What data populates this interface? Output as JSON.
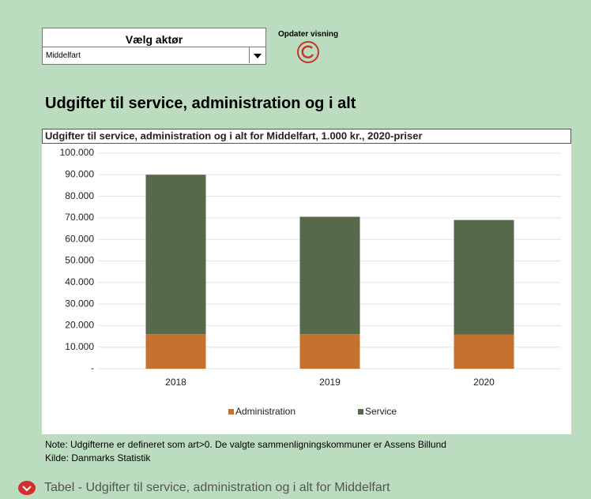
{
  "ui": {
    "selector_label": "Vælg aktør",
    "selected": "Middelfart",
    "refresh_button": "Opdater visning",
    "heading": "Udgifter til service, administration og i alt",
    "note": "Note: Udgifterne er defineret som art>0. De valgte sammenligningskommuner er Assens Billund",
    "source": "Kilde: Danmarks Statistik",
    "table_toggle": "Tabel - Udgifter til service, administration og i alt for Middelfart"
  },
  "chart_data": {
    "type": "stacked_bar",
    "title": "Udgifter til service, administration og i alt for Middelfart, 1.000 kr., 2020-priser",
    "categories": [
      "2018",
      "2019",
      "2020"
    ],
    "series": [
      {
        "name": "Administration",
        "color": "#c5722f",
        "values": [
          16000,
          16000,
          15800
        ]
      },
      {
        "name": "Service",
        "color": "#56694a",
        "values": [
          74000,
          54500,
          53200
        ]
      }
    ],
    "ylim": [
      0,
      100000
    ],
    "yticks": [
      {
        "value": 0,
        "label": "-"
      },
      {
        "value": 10000,
        "label": "10.000"
      },
      {
        "value": 20000,
        "label": "20.000"
      },
      {
        "value": 30000,
        "label": "30.000"
      },
      {
        "value": 40000,
        "label": "40.000"
      },
      {
        "value": 50000,
        "label": "50.000"
      },
      {
        "value": 60000,
        "label": "60.000"
      },
      {
        "value": 70000,
        "label": "70.000"
      },
      {
        "value": 80000,
        "label": "80.000"
      },
      {
        "value": 90000,
        "label": "90.000"
      },
      {
        "value": 100000,
        "label": "100.000"
      }
    ],
    "grid": true,
    "legend": "bottom"
  }
}
